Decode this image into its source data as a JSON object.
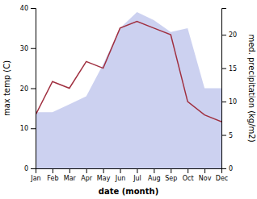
{
  "chart_data": {
    "type": "line",
    "categories": [
      "Jan",
      "Feb",
      "Mar",
      "Apr",
      "May",
      "Jun",
      "Jul",
      "Aug",
      "Sep",
      "Oct",
      "Nov",
      "Dec"
    ],
    "xlabel": "date (month)",
    "ylabel": "max temp (C)",
    "y2label": "med. precipitation (kg/m2)",
    "ylim": [
      0,
      40
    ],
    "yticks": [
      0,
      10,
      20,
      30,
      40
    ],
    "y2lim": [
      0,
      24
    ],
    "y2ticks": [
      0,
      5,
      10,
      15,
      20
    ],
    "series": [
      {
        "type": "area",
        "color": "#b0b8e8",
        "values": [
          14,
          14,
          16,
          18,
          26,
          35,
          39,
          37,
          34,
          35,
          20,
          20
        ]
      },
      {
        "type": "line",
        "axis": "y2",
        "color": "#a03040",
        "values": [
          8,
          13,
          12,
          16,
          15,
          21,
          22,
          21,
          20,
          10,
          8,
          7
        ]
      }
    ]
  }
}
